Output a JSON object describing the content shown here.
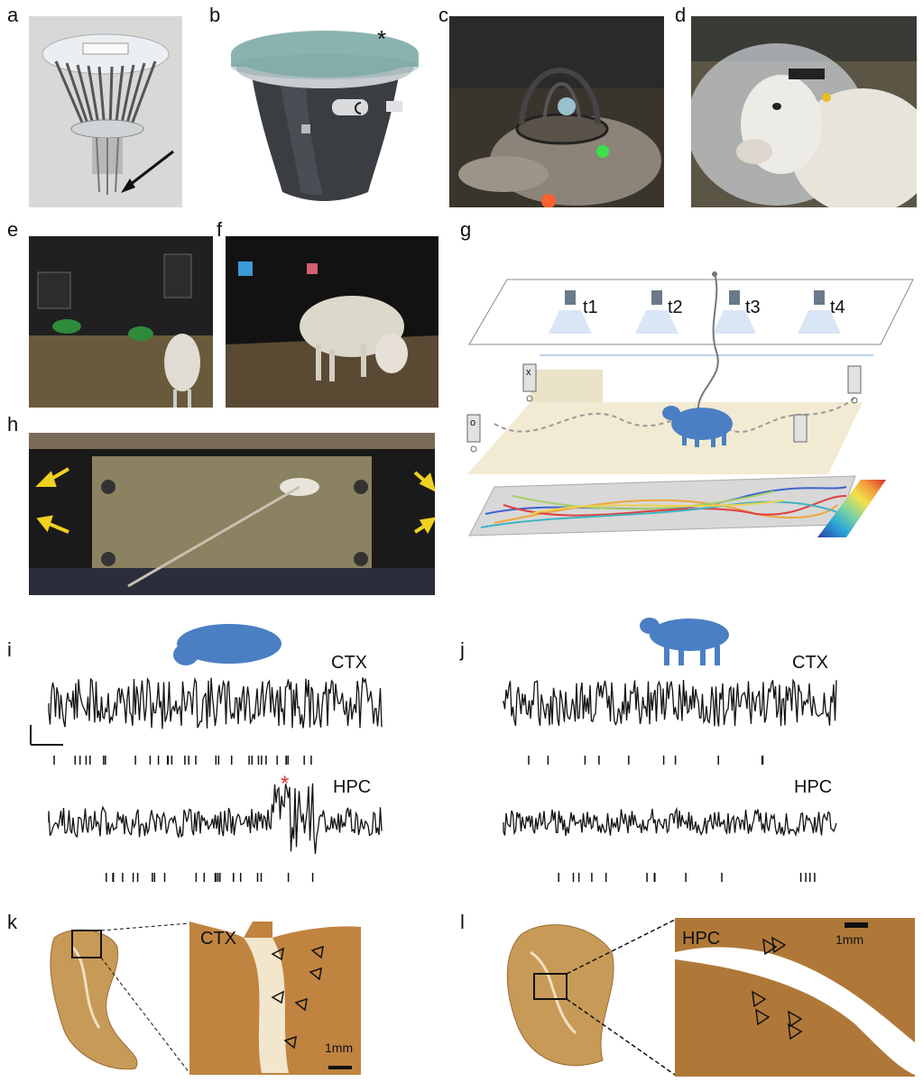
{
  "panels": [
    "a",
    "b",
    "c",
    "d",
    "e",
    "f",
    "g",
    "h",
    "i",
    "j",
    "k",
    "l"
  ],
  "panel_b": {
    "marker": "*"
  },
  "panel_g": {
    "cameras": [
      "t1",
      "t2",
      "t3",
      "t4"
    ],
    "cue_left": "o",
    "cue_right": "x",
    "colorbar_colors": [
      "#2c3fa8",
      "#29a7d8",
      "#7fd3a0",
      "#f3e04a",
      "#f29b3a",
      "#d7302a"
    ]
  },
  "panel_i": {
    "ctx_label": "CTX",
    "hpc_label": "HPC",
    "event_marker": "*",
    "event_color": "#e03030"
  },
  "panel_j": {
    "ctx_label": "CTX",
    "hpc_label": "HPC"
  },
  "panel_k": {
    "region": "CTX",
    "scale": "1mm"
  },
  "panel_l": {
    "region": "HPC",
    "scale": "1mm"
  },
  "colors": {
    "sheep_silhouette": "#4a7fc4",
    "trace": "#111111",
    "tissue": "#b07838",
    "gray_bg": "#c8c8c8"
  }
}
